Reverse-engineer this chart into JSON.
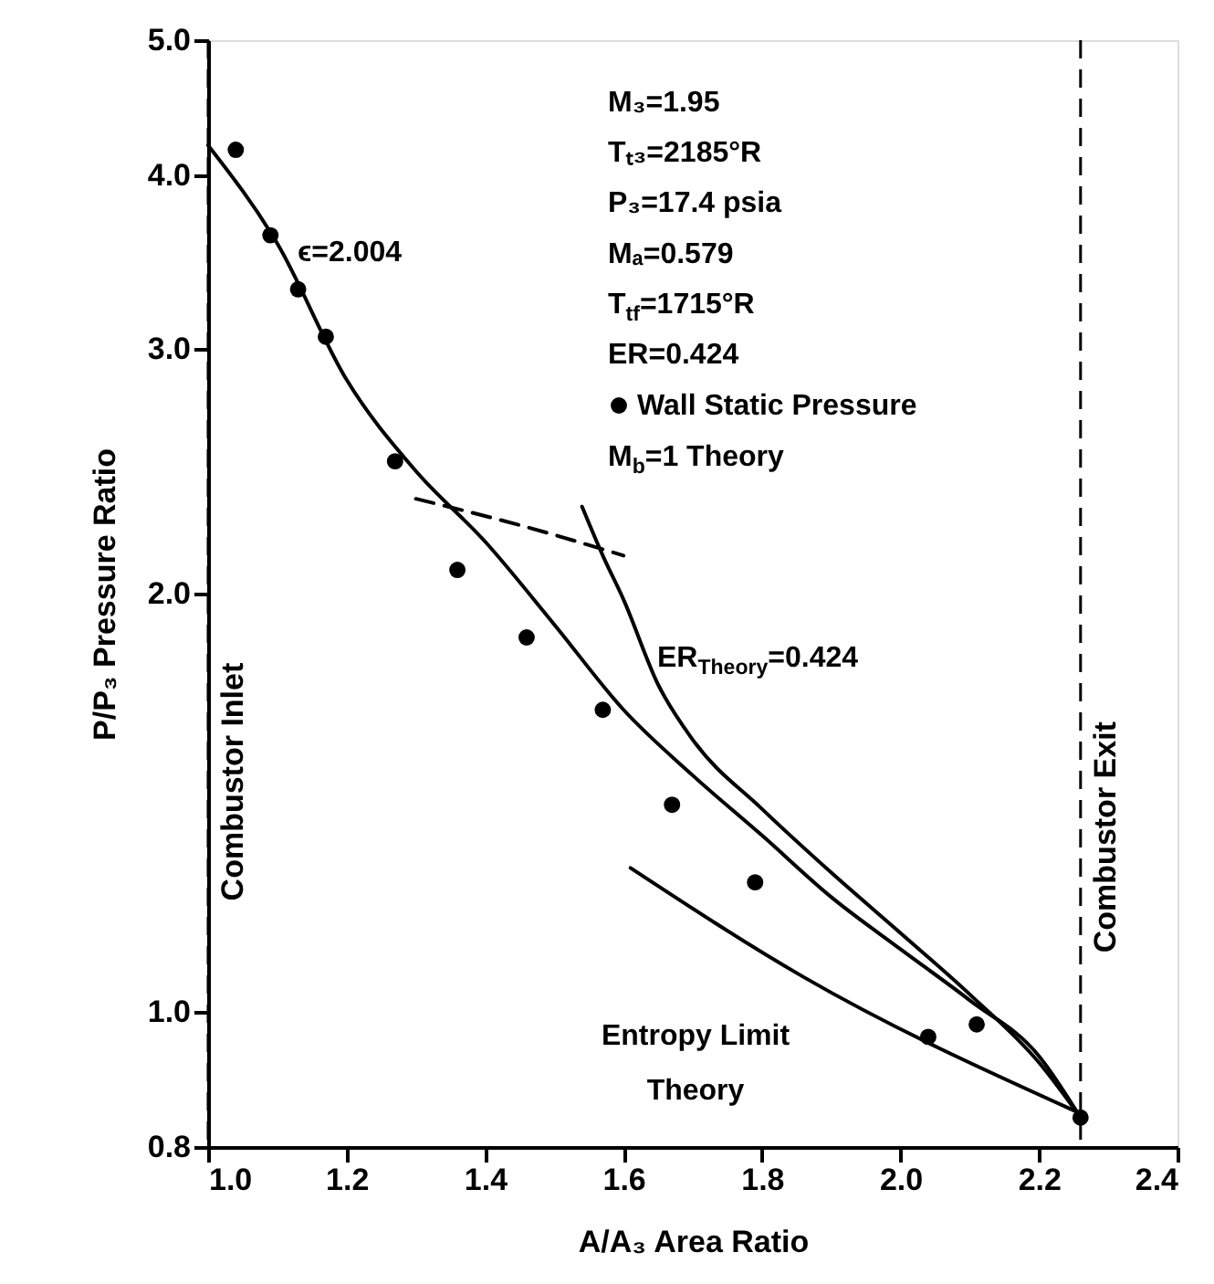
{
  "chart_data": {
    "type": "scatter",
    "xlabel": "A/A₃ Area Ratio",
    "ylabel": "P/P₃ Pressure Ratio",
    "log": "y",
    "xlim": [
      1.0,
      2.4
    ],
    "ylim": [
      0.8,
      5.0
    ],
    "xticks": [
      {
        "value": 1.0,
        "label": "1.0"
      },
      1.2,
      1.4,
      1.6,
      1.8,
      {
        "value": 2.0,
        "label": "2.0"
      },
      2.2,
      2.4
    ],
    "yticks": [
      0.8,
      {
        "value": 1.0,
        "label": "1.0"
      },
      {
        "value": 2.0,
        "label": "2.0"
      },
      {
        "value": 3.0,
        "label": "3.0"
      },
      {
        "value": 4.0,
        "label": "4.0"
      },
      {
        "value": 5.0,
        "label": "5.0"
      }
    ],
    "grid": false,
    "legend": "top right",
    "series": [
      {
        "name": "Wall Static Pressure",
        "marker": "circle",
        "color": "#000000",
        "x": [
          1.04,
          1.09,
          1.13,
          1.17,
          1.27,
          1.36,
          1.46,
          1.57,
          1.67,
          1.79,
          2.04,
          2.11,
          2.26
        ],
        "values": [
          4.17,
          3.62,
          3.31,
          3.06,
          2.49,
          2.08,
          1.86,
          1.65,
          1.41,
          1.24,
          0.96,
          0.98,
          0.84
        ]
      },
      {
        "type": "line",
        "line_style": "solid",
        "color": "#000000",
        "x": [
          1.0,
          1.1,
          1.2,
          1.3,
          1.4,
          1.5,
          1.6,
          1.7,
          1.8,
          1.9,
          2.0,
          2.1,
          2.2,
          2.26
        ],
        "values": [
          4.2,
          3.57,
          2.85,
          2.45,
          2.18,
          1.9,
          1.65,
          1.48,
          1.34,
          1.21,
          1.11,
          1.02,
          0.93,
          0.84
        ]
      },
      {
        "type": "line",
        "line_style": "solid",
        "color": "#000000",
        "x": [
          1.54,
          1.57,
          1.6,
          1.65,
          1.7,
          1.8,
          1.9,
          2.0,
          2.1,
          2.2,
          2.26
        ],
        "values": [
          2.31,
          2.13,
          1.98,
          1.72,
          1.57,
          1.4,
          1.26,
          1.14,
          1.03,
          0.92,
          0.84
        ]
      },
      {
        "type": "line",
        "line_style": "dashed",
        "color": "#000000",
        "x": [
          1.3,
          1.45,
          1.6
        ],
        "values": [
          2.34,
          2.24,
          2.13
        ]
      },
      {
        "type": "line",
        "line_style": "solid",
        "color": "#000000",
        "x": [
          1.61,
          1.86,
          2.25
        ],
        "values": [
          1.27,
          1.06,
          0.85
        ]
      }
    ],
    "ref_lines": [
      {
        "axis": "x",
        "value": 1.0,
        "label": "Combustor Inlet",
        "line_style": "dashed",
        "color": "#000000"
      },
      {
        "axis": "x",
        "value": 2.26,
        "label": "Combustor Exit",
        "line_style": "dashed",
        "color": "#000000"
      }
    ],
    "annotations": [
      "M₃=1.95",
      "Tₜ₃=2185°R",
      "P₃=17.4 psia",
      "Mₐ=0.579",
      "T$_{tf}$=1715°R",
      "ER=0.424",
      "ϵ=2.004",
      "M$_{b}$=1 Theory",
      "ER$_{Theory}$=0.424",
      "Entropy Limit\nTheory"
    ]
  }
}
